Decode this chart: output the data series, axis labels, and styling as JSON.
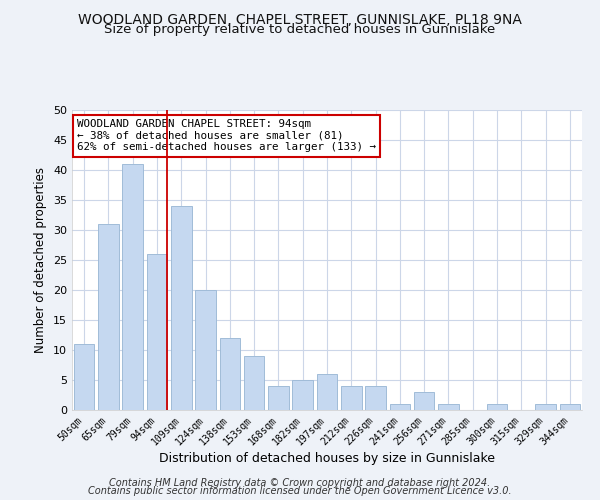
{
  "title": "WOODLAND GARDEN, CHAPEL STREET, GUNNISLAKE, PL18 9NA",
  "subtitle": "Size of property relative to detached houses in Gunnislake",
  "xlabel": "Distribution of detached houses by size in Gunnislake",
  "ylabel": "Number of detached properties",
  "bar_labels": [
    "50sqm",
    "65sqm",
    "79sqm",
    "94sqm",
    "109sqm",
    "124sqm",
    "138sqm",
    "153sqm",
    "168sqm",
    "182sqm",
    "197sqm",
    "212sqm",
    "226sqm",
    "241sqm",
    "256sqm",
    "271sqm",
    "285sqm",
    "300sqm",
    "315sqm",
    "329sqm",
    "344sqm"
  ],
  "bar_values": [
    11,
    31,
    41,
    26,
    34,
    20,
    12,
    9,
    4,
    5,
    6,
    4,
    4,
    1,
    3,
    1,
    0,
    1,
    0,
    1,
    1
  ],
  "bar_color": "#c5d8f0",
  "bar_edge_color": "#a0bcd8",
  "marker_index": 3,
  "marker_line_color": "#cc0000",
  "annotation_line1": "WOODLAND GARDEN CHAPEL STREET: 94sqm",
  "annotation_line2": "← 38% of detached houses are smaller (81)",
  "annotation_line3": "62% of semi-detached houses are larger (133) →",
  "ylim": [
    0,
    50
  ],
  "yticks": [
    0,
    5,
    10,
    15,
    20,
    25,
    30,
    35,
    40,
    45,
    50
  ],
  "footer1": "Contains HM Land Registry data © Crown copyright and database right 2024.",
  "footer2": "Contains public sector information licensed under the Open Government Licence v3.0.",
  "bg_color": "#eef2f8",
  "plot_bg_color": "#ffffff",
  "grid_color": "#ccd6e8",
  "title_fontsize": 10,
  "subtitle_fontsize": 9.5,
  "annotation_box_color": "#ffffff",
  "annotation_box_edge": "#cc0000"
}
